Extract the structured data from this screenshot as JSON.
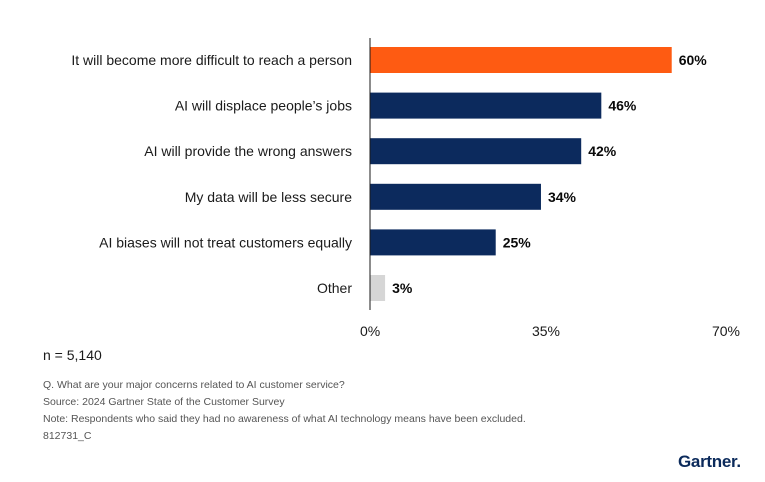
{
  "chart_data": {
    "type": "bar",
    "orientation": "horizontal",
    "categories": [
      "It will become more difficult to reach a person",
      "AI will displace people’s jobs",
      "AI will provide the wrong answers",
      "My data will be less secure",
      "AI biases will not treat customers equally",
      "Other"
    ],
    "values": [
      60,
      46,
      42,
      34,
      25,
      3
    ],
    "value_labels": [
      "60%",
      "46%",
      "42%",
      "34%",
      "25%",
      "3%"
    ],
    "bar_colors": [
      "#fe5b12",
      "#0c2a5d",
      "#0c2a5d",
      "#0c2a5d",
      "#0c2a5d",
      "#d6d6d6"
    ],
    "xlim": [
      0,
      70
    ],
    "x_ticks": [
      0,
      35,
      70
    ],
    "x_tick_labels": [
      "0%",
      "35%",
      "70%"
    ],
    "title": "",
    "xlabel": "",
    "ylabel": "",
    "grid": false
  },
  "footer": {
    "n": "n = 5,140",
    "question": "Q. What are your major concerns related to AI customer service?",
    "source": "Source: 2024 Gartner State of the Customer Survey",
    "note": "Note: Respondents who said they had no awareness of what AI technology means have been excluded.",
    "code": "812731_C"
  },
  "brand": {
    "name": "Gartner",
    "dot": "."
  }
}
